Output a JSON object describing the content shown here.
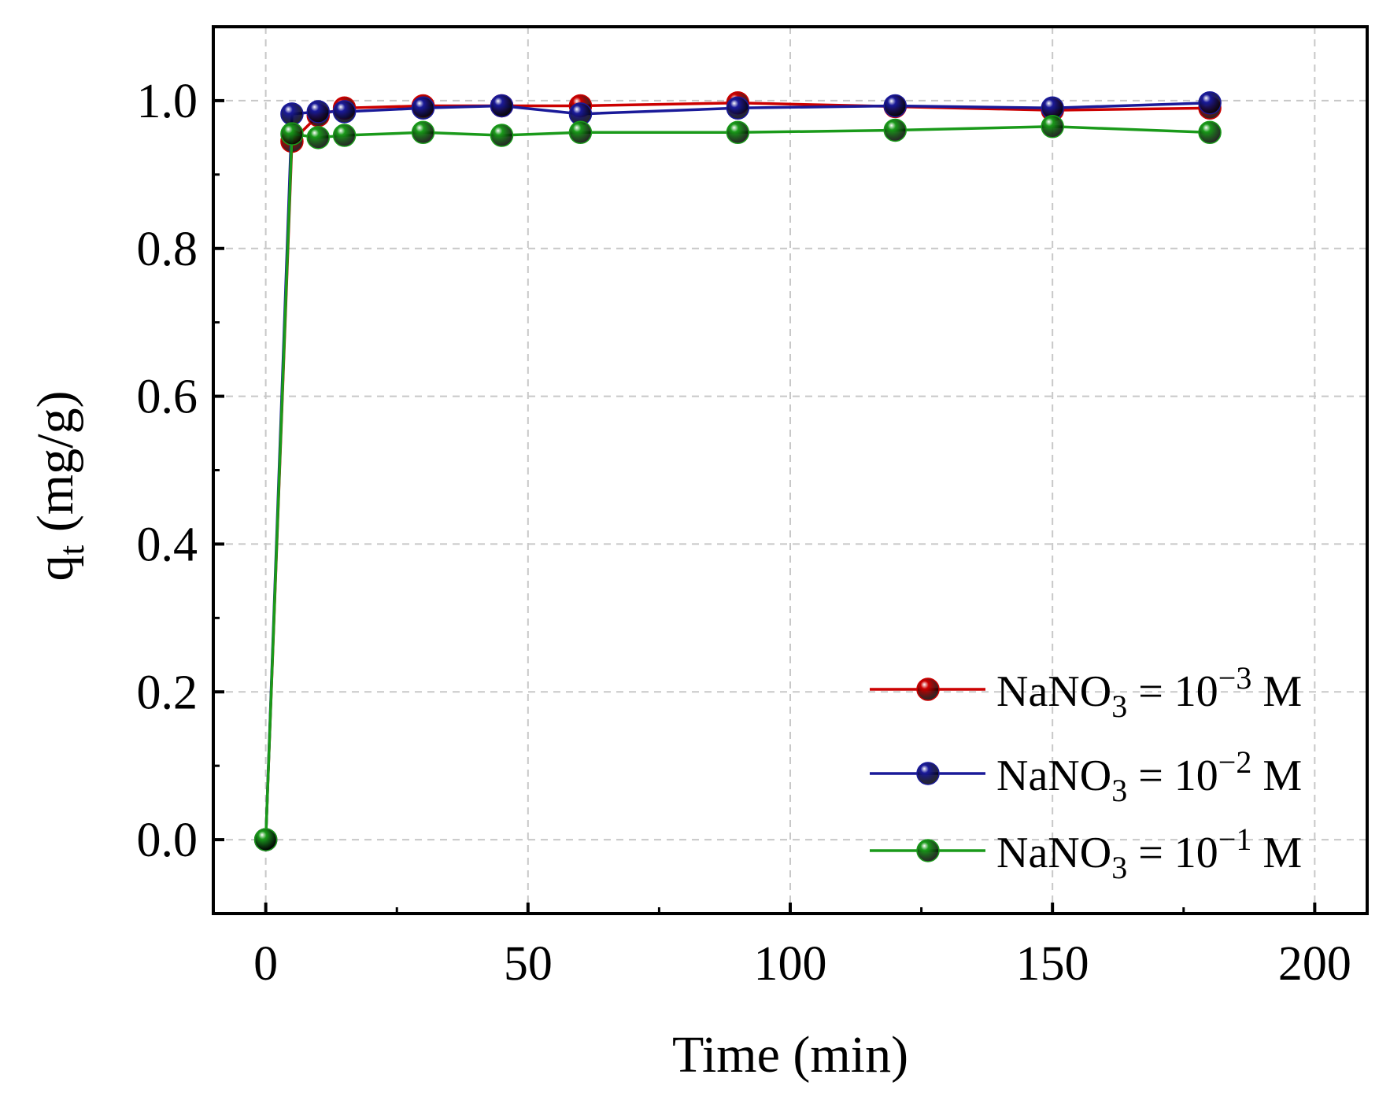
{
  "chart_data": {
    "type": "line",
    "title": "",
    "xlabel": "Time (min)",
    "ylabel": {
      "base": "q",
      "subscript": "t",
      "units": " (mg/g)"
    },
    "xlim": [
      -10,
      210
    ],
    "ylim": [
      -0.1,
      1.1
    ],
    "x_ticks": [
      0,
      50,
      100,
      150,
      200
    ],
    "x_tick_labels": [
      "0",
      "50",
      "100",
      "150",
      "200"
    ],
    "y_ticks": [
      0.0,
      0.2,
      0.4,
      0.6,
      0.8,
      1.0
    ],
    "y_tick_labels": [
      "0.0",
      "0.2",
      "0.4",
      "0.6",
      "0.8",
      "1.0"
    ],
    "grid": true,
    "legend_position": "bottom-right",
    "series": [
      {
        "name": "NaNO3 = 10^-3 M",
        "label": {
          "prefix": "NaNO",
          "sub": "3",
          "mid": " = 10",
          "sup": "−3",
          "suffix": " M"
        },
        "color": "#cc0000",
        "x": [
          0,
          5,
          10,
          15,
          30,
          45,
          60,
          90,
          120,
          150,
          180
        ],
        "y": [
          0.0,
          0.945,
          0.98,
          0.99,
          0.993,
          0.993,
          0.993,
          0.997,
          0.992,
          0.987,
          0.99
        ]
      },
      {
        "name": "NaNO3 = 10^-2 M",
        "label": {
          "prefix": "NaNO",
          "sub": "3",
          "mid": " = 10",
          "sup": "−2",
          "suffix": " M"
        },
        "color": "#1a1a99",
        "x": [
          0,
          5,
          10,
          15,
          30,
          45,
          60,
          90,
          120,
          150,
          180
        ],
        "y": [
          0.0,
          0.982,
          0.985,
          0.985,
          0.99,
          0.993,
          0.982,
          0.99,
          0.993,
          0.99,
          0.997
        ]
      },
      {
        "name": "NaNO3 = 10^-1 M",
        "label": {
          "prefix": "NaNO",
          "sub": "3",
          "mid": " = 10",
          "sup": "−1",
          "suffix": " M"
        },
        "color": "#1a9a1a",
        "x": [
          0,
          5,
          10,
          15,
          30,
          45,
          60,
          90,
          120,
          150,
          180
        ],
        "y": [
          0.0,
          0.955,
          0.95,
          0.953,
          0.957,
          0.953,
          0.957,
          0.957,
          0.96,
          0.965,
          0.957
        ]
      }
    ]
  }
}
